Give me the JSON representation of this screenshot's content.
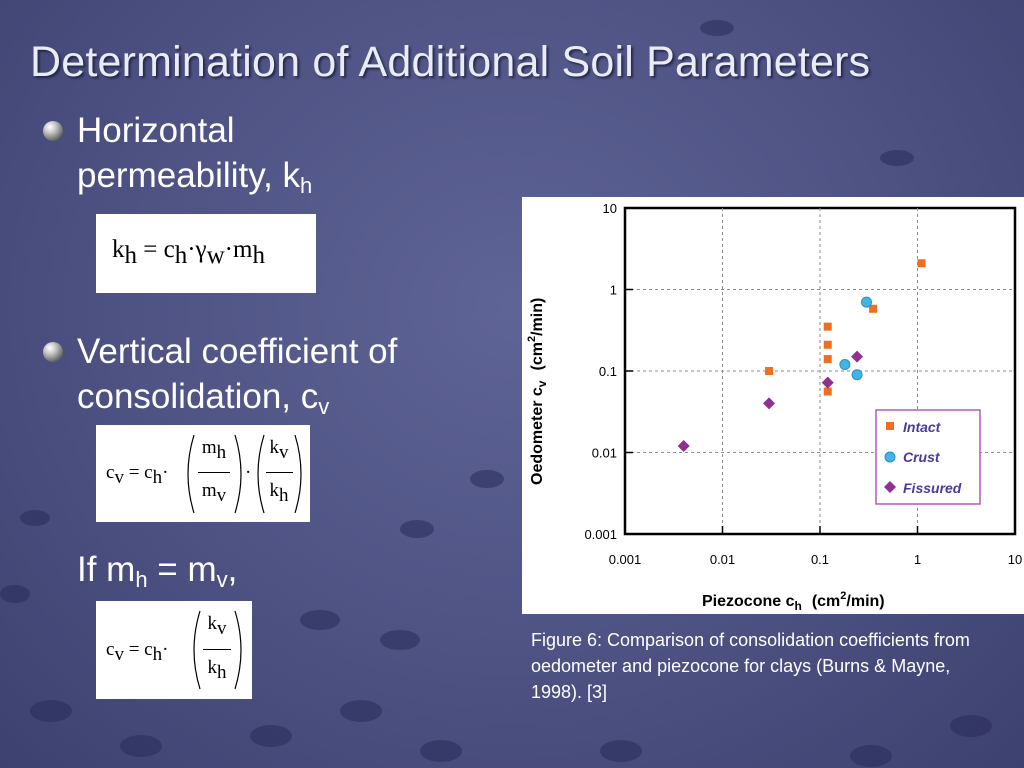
{
  "title": "Determination of Additional Soil Parameters",
  "bullets": [
    {
      "line1": "Horizontal",
      "line2_main": "permeability, k",
      "line2_sub": "h"
    },
    {
      "line1": "Vertical coefficient of",
      "line2_main": "consolidation, c",
      "line2_sub": "v"
    }
  ],
  "if_line": {
    "a": "If m",
    "a_sub": "h",
    "eq": " = m",
    "b_sub": "v",
    "tail": ","
  },
  "equations": {
    "kh": {
      "k": "k",
      "k_sub": "h",
      "eq": " = c",
      "c_sub": "h",
      "dot1": "·",
      "gamma": "γ",
      "gamma_sub": "w",
      "dot2": "·",
      "m": "m",
      "m_sub": "h"
    },
    "cv1": {
      "lhs": "c",
      "lhs_sub": "v",
      "eq": " = c",
      "c_sub": "h",
      "dot": "·",
      "f1_num": "m",
      "f1_num_sub": "h",
      "f1_den": "m",
      "f1_den_sub": "v",
      "mid_dot": "·",
      "f2_num": "k",
      "f2_num_sub": "v",
      "f2_den": "k",
      "f2_den_sub": "h"
    },
    "cv2": {
      "lhs": "c",
      "lhs_sub": "v",
      "eq": " = c",
      "c_sub": "h",
      "dot": "·",
      "f_num": "k",
      "f_num_sub": "v",
      "f_den": "k",
      "f_den_sub": "h"
    }
  },
  "caption": "Figure 6: Comparison of consolidation coefficients from oedometer and piezocone for clays (Burns & Mayne, 1998). [3]",
  "colors": {
    "intact": "#ed6f1f",
    "crust": "#3fb6e6",
    "fissured": "#8f3190",
    "legend_border": "#b05bbb",
    "grid": "#8c8c8c"
  },
  "chart_data": {
    "type": "scatter",
    "xscale": "log",
    "yscale": "log",
    "xlim": [
      0.001,
      10
    ],
    "ylim": [
      0.001,
      10
    ],
    "xticks": [
      "0.001",
      "0.01",
      "0.1",
      "1",
      "10"
    ],
    "yticks": [
      "0.001",
      "0.01",
      "0.1",
      "1",
      "10"
    ],
    "xlabel": "Piezocone c",
    "xlabel_sub": "h",
    "xlabel_unit": "(cm",
    "xlabel_sup": "2",
    "xlabel_tail": "/min)",
    "ylabel": "Oedometer c",
    "ylabel_sub": "v",
    "ylabel_unit": "(cm",
    "ylabel_sup": "2",
    "ylabel_tail": "/min)",
    "grid": true,
    "legend_position": "lower-right",
    "series": [
      {
        "name": "Intact",
        "marker": "square",
        "color": "#ed6f1f",
        "points": [
          [
            1.1,
            2.1
          ],
          [
            0.35,
            0.58
          ],
          [
            0.12,
            0.35
          ],
          [
            0.12,
            0.21
          ],
          [
            0.12,
            0.14
          ],
          [
            0.03,
            0.1
          ],
          [
            0.12,
            0.056
          ]
        ]
      },
      {
        "name": "Crust",
        "marker": "circle",
        "color": "#3fb6e6",
        "points": [
          [
            0.3,
            0.7
          ],
          [
            0.18,
            0.12
          ],
          [
            0.24,
            0.09
          ]
        ]
      },
      {
        "name": "Fissured",
        "marker": "diamond",
        "color": "#8f3190",
        "points": [
          [
            0.24,
            0.15
          ],
          [
            0.12,
            0.072
          ],
          [
            0.03,
            0.04
          ],
          [
            0.004,
            0.012
          ]
        ]
      }
    ]
  }
}
